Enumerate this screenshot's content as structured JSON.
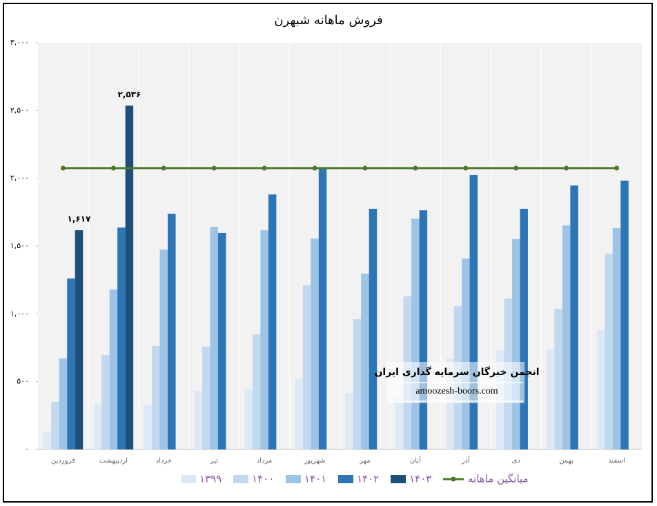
{
  "chart_data": {
    "type": "bar",
    "title": "فروش ماهانه شبهرن",
    "categories": [
      "فروردین",
      "اردیبهشت",
      "خرداد",
      "تیر",
      "مرداد",
      "شهریور",
      "مهر",
      "آبان",
      "آذر",
      "دی",
      "بهمن",
      "اسفند"
    ],
    "series": [
      {
        "name": "۱۳۹۹",
        "color": "#dde9f5",
        "values": [
          132,
          330,
          330,
          432,
          447,
          519,
          412,
          380,
          671,
          732,
          742,
          885
        ]
      },
      {
        "name": "۱۴۰۰",
        "color": "#c2d8ee",
        "values": [
          351,
          697,
          763,
          758,
          849,
          1210,
          961,
          1129,
          1058,
          1114,
          1037,
          1444
        ]
      },
      {
        "name": "۱۴۰۱",
        "color": "#9dc3e6",
        "values": [
          671,
          1180,
          1475,
          1642,
          1617,
          1556,
          1297,
          1703,
          1408,
          1551,
          1653,
          1632
        ]
      },
      {
        "name": "۱۴۰۲",
        "color": "#2e75b6",
        "values": [
          1261,
          1637,
          1739,
          1597,
          1881,
          2080,
          1775,
          1764,
          2024,
          1775,
          1947,
          1983
        ]
      },
      {
        "name": "۱۴۰۳",
        "color": "#1f4e79",
        "values": [
          1617,
          2536,
          null,
          null,
          null,
          null,
          null,
          null,
          null,
          null,
          null,
          null
        ],
        "value_labels": [
          "۱,۶۱۷",
          "۲,۵۳۶",
          null,
          null,
          null,
          null,
          null,
          null,
          null,
          null,
          null,
          null
        ]
      },
      {
        "name": "میانگین ماهانه",
        "color": "#4a7a2a",
        "type": "line",
        "values": [
          2075,
          2075,
          2075,
          2075,
          2075,
          2075,
          2075,
          2075,
          2075,
          2075,
          2075,
          2075
        ]
      }
    ],
    "ylim": [
      0,
      3000
    ],
    "yticks": [
      {
        "value": 0,
        "label": "۰"
      },
      {
        "value": 500,
        "label": "۵۰۰"
      },
      {
        "value": 1000,
        "label": "۱,۰۰۰"
      },
      {
        "value": 1500,
        "label": "۱,۵۰۰"
      },
      {
        "value": 2000,
        "label": "۲,۰۰۰"
      },
      {
        "value": 2500,
        "label": "۲,۵۰۰"
      },
      {
        "value": 3000,
        "label": "۳,۰۰۰"
      }
    ],
    "grid": false,
    "legend": "bottom",
    "annotations": [
      "انجمن خبرگان سرمایه گذاری ایران",
      "amoozesh-boors.com"
    ]
  }
}
